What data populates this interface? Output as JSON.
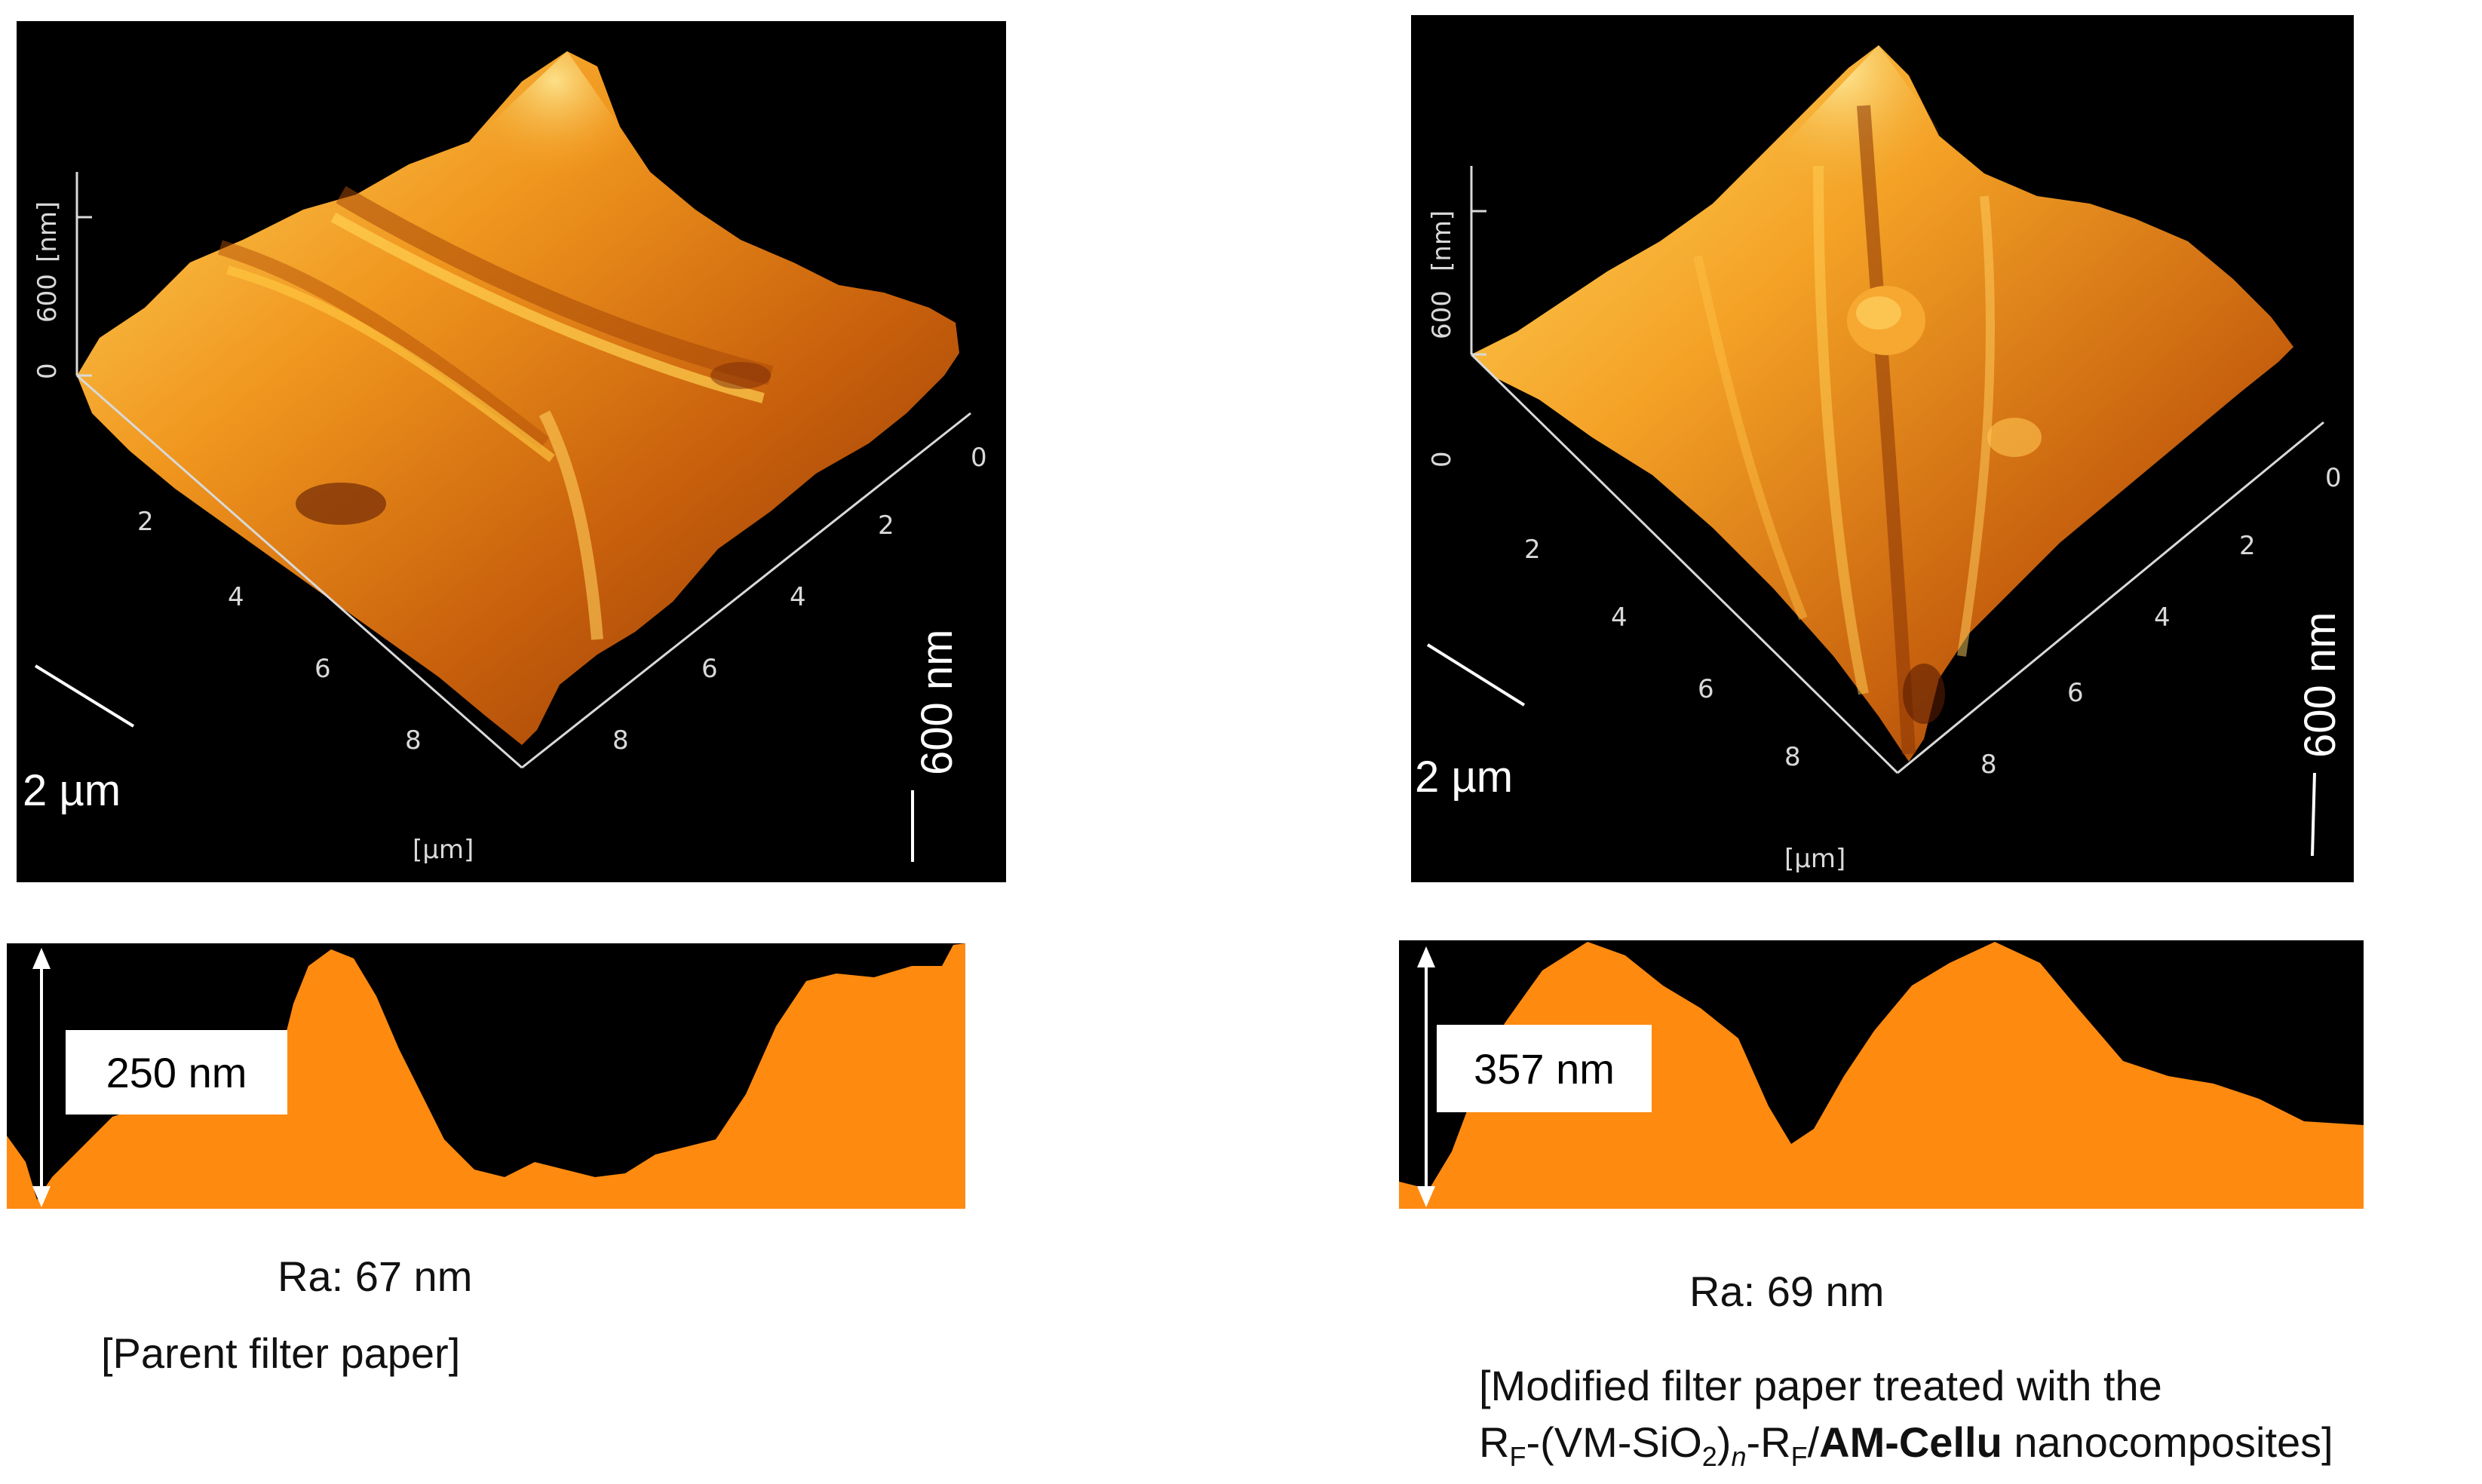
{
  "left": {
    "axis_z": {
      "tick0": "0",
      "tick600": "600",
      "unit": "[nm]"
    },
    "axis_left_ticks": [
      "2",
      "4",
      "6",
      "8"
    ],
    "axis_right_ticks": [
      "0",
      "2",
      "4",
      "6",
      "8"
    ],
    "axis_unit": "[µm]",
    "scale_xy": "2 µm",
    "scale_z": "600 nm",
    "profile_height": "250 nm",
    "ra": "Ra: 67 nm",
    "caption": "[Parent filter paper]"
  },
  "right": {
    "axis_z": {
      "tick0": "0",
      "tick600": "600",
      "unit": "[nm]"
    },
    "axis_left_ticks": [
      "2",
      "4",
      "6",
      "8"
    ],
    "axis_right_ticks": [
      "0",
      "2",
      "4",
      "6",
      "8"
    ],
    "axis_unit": "[µm]",
    "scale_xy": "2 µm",
    "scale_z": "600 nm",
    "profile_height": "357 nm",
    "ra": "Ra: 69 nm",
    "caption_line1": "[Modified filter paper treated with the",
    "caption_line2_parts": {
      "rf1": "R",
      "rf1_sub": "F",
      "mid": "-(VM-SiO",
      "mid_sub": "2",
      "close": ")",
      "n": "n",
      "dash": "-R",
      "rf2_sub": "F",
      "slash": "/",
      "bold": "AM-Cellu",
      "tail": " nanocomposites]"
    }
  },
  "colors": {
    "surface_dark": "#7a2a05",
    "surface_mid": "#d8700e",
    "surface_light": "#ffd25a",
    "profile_fill": "#ff8a10",
    "background": "#000000"
  }
}
